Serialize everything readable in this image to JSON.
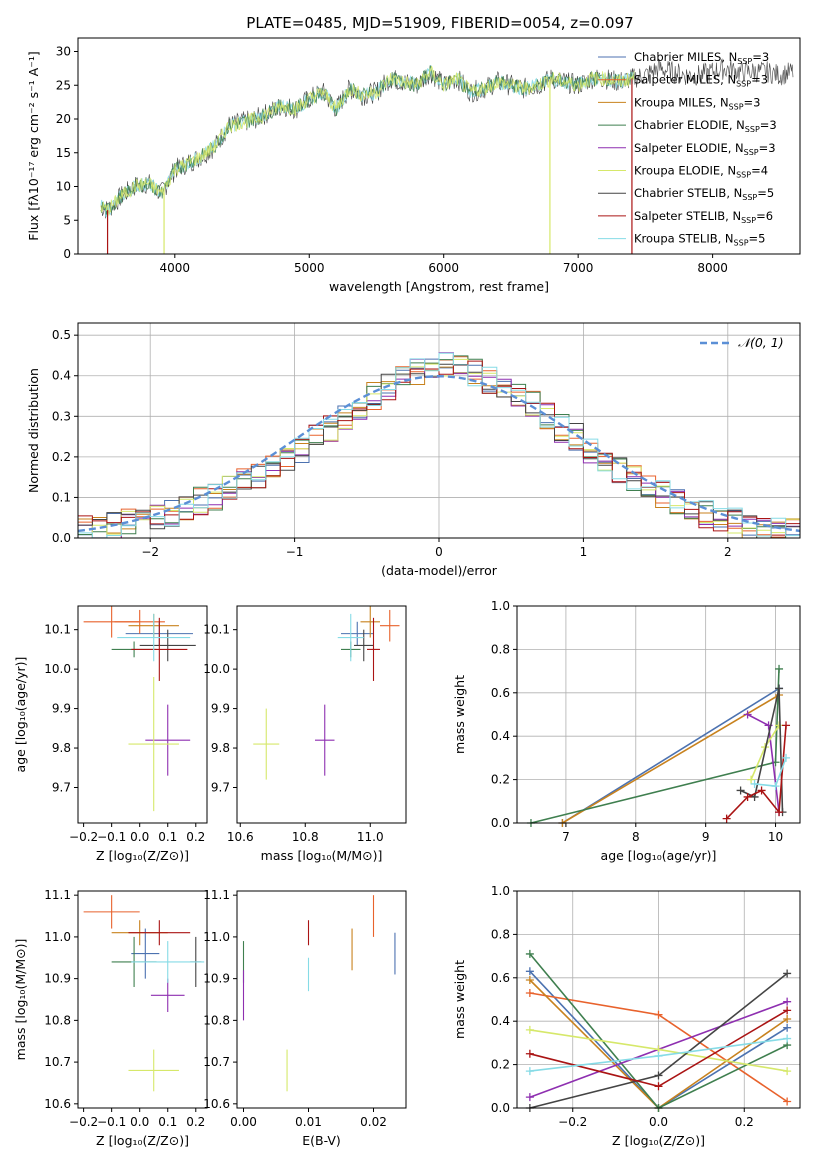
{
  "page_title": "PLATE=0485, MJD=51909, FIBERID=0054, z=0.097",
  "colors": {
    "Chabrier MILES": "#4c72b0",
    "Salpeter MILES": "#e8622c",
    "Kroupa MILES": "#c8821e",
    "Chabrier ELODIE": "#3f7f4f",
    "Salpeter ELODIE": "#8e2fb0",
    "Kroupa ELODIE": "#d6e86a",
    "Chabrier STELIB": "#444444",
    "Salpeter STELIB": "#aa1414",
    "Kroupa STELIB": "#86dbe6",
    "normal": "#5b8fd6"
  },
  "chart_data": [
    {
      "id": "spectrum",
      "type": "line",
      "title": "PLATE=0485, MJD=51909, FIBERID=0054, z=0.097",
      "xlabel": "wavelength [Angstrom, rest frame]",
      "ylabel": "Flux [fλ10⁻¹⁷ erg cm⁻² s⁻¹ A⁻¹]",
      "xlim": [
        3280,
        8650
      ],
      "ylim": [
        0,
        32
      ],
      "xticks": [
        4000,
        5000,
        6000,
        7000,
        8000
      ],
      "yticks": [
        0,
        5,
        10,
        15,
        20,
        25,
        30
      ],
      "legend": [
        "Chabrier MILES, N_SSP=3",
        "Salpeter MILES, N_SSP=3",
        "Kroupa MILES, N_SSP=3",
        "Chabrier ELODIE, N_SSP=3",
        "Salpeter ELODIE, N_SSP=3",
        "Kroupa ELODIE, N_SSP=4",
        "Chabrier STELIB, N_SSP=5",
        "Salpeter STELIB, N_SSP=6",
        "Kroupa STELIB, N_SSP=5"
      ],
      "legend_position": "right",
      "observed_envelope": {
        "x": [
          3450,
          3500,
          3600,
          3700,
          3800,
          3900,
          4000,
          4100,
          4200,
          4300,
          4400,
          4500,
          4600,
          4700,
          4800,
          4900,
          5000,
          5100,
          5200,
          5300,
          5400,
          5500,
          5600,
          5700,
          5800,
          5900,
          6000,
          6100,
          6200,
          6300,
          6400,
          6500,
          6600,
          6700,
          6800,
          6900,
          7000,
          7100,
          7200,
          7300,
          7400,
          7500,
          7600,
          7700,
          7800,
          7900,
          8000,
          8100,
          8200,
          8300,
          8400,
          8500,
          8600
        ],
        "y": [
          7,
          6.5,
          8.5,
          10,
          10.5,
          9,
          12.5,
          13.5,
          14.5,
          16,
          19,
          19.5,
          20,
          21,
          22,
          21.5,
          23,
          24,
          21.5,
          24.5,
          23.5,
          24,
          26,
          25.5,
          25,
          27,
          25,
          26,
          24,
          24.5,
          25.5,
          25,
          24.5,
          25,
          26,
          25.5,
          25,
          26,
          26,
          25.5,
          26,
          26.5,
          27.5,
          27,
          26.5,
          26.5,
          27,
          27.5,
          27,
          27,
          27,
          26.5,
          27
        ]
      },
      "dropouts": [
        {
          "series": "Kroupa ELODIE",
          "x": 3920
        },
        {
          "series": "Salpeter STELIB",
          "x": 3500
        },
        {
          "series": "Kroupa ELODIE",
          "x": 6790
        },
        {
          "series": "Salpeter STELIB",
          "x": 7400
        }
      ]
    },
    {
      "id": "residuals",
      "type": "step",
      "xlabel": "(data-model)/error",
      "ylabel": "Normed distribution",
      "xlim": [
        -2.5,
        2.5
      ],
      "ylim": [
        0,
        0.53
      ],
      "xticks": [
        -2,
        -1,
        0,
        1,
        2
      ],
      "yticks": [
        0.0,
        0.1,
        0.2,
        0.3,
        0.4,
        0.5
      ],
      "grid": true,
      "legend": [
        "𝒩(0, 1)"
      ],
      "legend_position": "top-right",
      "bin_edges_start": -2.5,
      "bin_width": 0.1,
      "base_values": [
        0.02,
        0.02,
        0.03,
        0.04,
        0.04,
        0.05,
        0.06,
        0.07,
        0.09,
        0.1,
        0.12,
        0.14,
        0.15,
        0.17,
        0.2,
        0.22,
        0.25,
        0.27,
        0.3,
        0.32,
        0.35,
        0.37,
        0.39,
        0.41,
        0.42,
        0.43,
        0.42,
        0.41,
        0.39,
        0.37,
        0.35,
        0.33,
        0.3,
        0.27,
        0.25,
        0.22,
        0.2,
        0.17,
        0.15,
        0.13,
        0.11,
        0.09,
        0.08,
        0.06,
        0.05,
        0.04,
        0.03,
        0.03,
        0.02,
        0.02
      ]
    },
    {
      "id": "age_vs_Z",
      "type": "errorbar",
      "xlabel": "Z [log₁₀(Z/Z⊙)]",
      "ylabel": "age  [log₁₀(age/yr)]",
      "xlim": [
        -0.22,
        0.24
      ],
      "ylim": [
        9.61,
        10.16
      ],
      "xticks": [
        -0.2,
        -0.1,
        0.0,
        0.1,
        0.2
      ],
      "yticks": [
        9.7,
        9.8,
        9.9,
        10.0,
        10.1
      ],
      "points": [
        {
          "series": "Chabrier MILES",
          "x": 0.07,
          "y": 10.09,
          "xerr": 0.12,
          "yerr": 0.03
        },
        {
          "series": "Salpeter MILES",
          "x": 0.0,
          "y": 10.12,
          "xerr": 0.09,
          "yerr": 0.03
        },
        {
          "series": "Kroupa MILES",
          "x": 0.05,
          "y": 10.11,
          "xerr": 0.09,
          "yerr": 0.03
        },
        {
          "series": "Chabrier ELODIE",
          "x": -0.02,
          "y": 10.05,
          "xerr": 0.08,
          "yerr": 0.02
        },
        {
          "series": "Salpeter ELODIE",
          "x": 0.1,
          "y": 9.82,
          "xerr": 0.08,
          "yerr": 0.09
        },
        {
          "series": "Kroupa ELODIE",
          "x": 0.05,
          "y": 9.81,
          "xerr": 0.09,
          "yerr": 0.17
        },
        {
          "series": "Chabrier STELIB",
          "x": 0.1,
          "y": 10.06,
          "xerr": 0.1,
          "yerr": 0.04
        },
        {
          "series": "Salpeter STELIB",
          "x": 0.07,
          "y": 10.05,
          "xerr": 0.1,
          "yerr": 0.08
        },
        {
          "series": "Kroupa STELIB",
          "x": 0.05,
          "y": 10.08,
          "xerr": 0.13,
          "yerr": 0.06
        },
        {
          "series": "Salpeter MILES",
          "x": -0.1,
          "y": 10.12,
          "xerr": 0.1,
          "yerr": 0.04
        }
      ]
    },
    {
      "id": "age_vs_mass",
      "type": "errorbar",
      "xlabel": "mass [log₁₀(M/M⊙)]",
      "xlim": [
        10.59,
        11.11
      ],
      "ylim": [
        9.61,
        10.16
      ],
      "xticks": [
        10.6,
        10.8,
        11.0
      ],
      "yticks": [
        9.7,
        9.8,
        9.9,
        10.0,
        10.1
      ],
      "points": [
        {
          "series": "Chabrier MILES",
          "x": 10.96,
          "y": 10.09,
          "xerr": 0.05,
          "yerr": 0.03
        },
        {
          "series": "Salpeter MILES",
          "x": 11.06,
          "y": 10.11,
          "xerr": 0.03,
          "yerr": 0.04
        },
        {
          "series": "Kroupa MILES",
          "x": 11.0,
          "y": 10.12,
          "xerr": 0.03,
          "yerr": 0.04
        },
        {
          "series": "Chabrier ELODIE",
          "x": 10.94,
          "y": 10.05,
          "xerr": 0.03,
          "yerr": 0.02
        },
        {
          "series": "Salpeter ELODIE",
          "x": 10.86,
          "y": 9.82,
          "xerr": 0.03,
          "yerr": 0.09
        },
        {
          "series": "Kroupa ELODIE",
          "x": 10.68,
          "y": 9.81,
          "xerr": 0.04,
          "yerr": 0.09
        },
        {
          "series": "Chabrier STELIB",
          "x": 10.98,
          "y": 10.06,
          "xerr": 0.03,
          "yerr": 0.04
        },
        {
          "series": "Salpeter STELIB",
          "x": 11.01,
          "y": 10.05,
          "xerr": 0.02,
          "yerr": 0.08
        },
        {
          "series": "Kroupa STELIB",
          "x": 10.94,
          "y": 10.08,
          "xerr": 0.04,
          "yerr": 0.06
        }
      ]
    },
    {
      "id": "weight_vs_age",
      "type": "line",
      "xlabel": "age  [log₁₀(age/yr)]",
      "ylabel": "mass weight",
      "xlim": [
        6.3,
        10.35
      ],
      "ylim": [
        0,
        1.0
      ],
      "xticks": [
        7,
        8,
        9,
        10
      ],
      "yticks": [
        0.0,
        0.2,
        0.4,
        0.6,
        0.8,
        1.0
      ],
      "grid": true,
      "series": [
        {
          "name": "Chabrier MILES",
          "x": [
            6.95,
            10.05
          ],
          "y": [
            0.0,
            0.62
          ]
        },
        {
          "name": "Kroupa MILES",
          "x": [
            6.95,
            10.05
          ],
          "y": [
            0.0,
            0.59
          ]
        },
        {
          "name": "Chabrier ELODIE",
          "x": [
            6.5,
            10.0,
            10.05
          ],
          "y": [
            0.0,
            0.28,
            0.71
          ]
        },
        {
          "name": "Salpeter ELODIE",
          "x": [
            9.6,
            9.9,
            10.05
          ],
          "y": [
            0.5,
            0.45,
            0.05
          ]
        },
        {
          "name": "Kroupa ELODIE",
          "x": [
            9.65,
            9.85,
            10.05
          ],
          "y": [
            0.2,
            0.35,
            0.45
          ]
        },
        {
          "name": "Chabrier STELIB",
          "x": [
            9.5,
            9.7,
            10.05,
            10.1
          ],
          "y": [
            0.15,
            0.12,
            0.62,
            0.05
          ]
        },
        {
          "name": "Salpeter STELIB",
          "x": [
            9.3,
            9.6,
            9.8,
            10.05,
            10.15
          ],
          "y": [
            0.02,
            0.12,
            0.15,
            0.05,
            0.45
          ]
        },
        {
          "name": "Kroupa STELIB",
          "x": [
            9.7,
            10.0,
            10.15
          ],
          "y": [
            0.18,
            0.17,
            0.3
          ]
        }
      ]
    },
    {
      "id": "mass_vs_Z",
      "type": "errorbar",
      "xlabel": "Z [log₁₀(Z/Z⊙)]",
      "ylabel": "mass [log₁₀(M/M⊙)]",
      "xlim": [
        -0.22,
        0.24
      ],
      "ylim": [
        10.59,
        11.11
      ],
      "xticks": [
        -0.2,
        -0.1,
        0.0,
        0.1,
        0.2
      ],
      "yticks": [
        10.6,
        10.7,
        10.8,
        10.9,
        11.0,
        11.1
      ],
      "points": [
        {
          "series": "Salpeter MILES",
          "x": -0.1,
          "y": 11.06,
          "xerr": 0.1,
          "yerr": 0.04
        },
        {
          "series": "Kroupa MILES",
          "x": 0.0,
          "y": 11.01,
          "xerr": 0.1,
          "yerr": 0.03
        },
        {
          "series": "Chabrier MILES",
          "x": 0.02,
          "y": 10.96,
          "xerr": 0.05,
          "yerr": 0.06
        },
        {
          "series": "Chabrier ELODIE",
          "x": -0.02,
          "y": 10.94,
          "xerr": 0.08,
          "yerr": 0.06
        },
        {
          "series": "Salpeter ELODIE",
          "x": 0.1,
          "y": 10.86,
          "xerr": 0.06,
          "yerr": 0.04
        },
        {
          "series": "Kroupa ELODIE",
          "x": 0.05,
          "y": 10.68,
          "xerr": 0.09,
          "yerr": 0.05
        },
        {
          "series": "Chabrier STELIB",
          "x": 0.2,
          "y": 10.94,
          "xerr": 0.02,
          "yerr": 0.06
        },
        {
          "series": "Salpeter STELIB",
          "x": 0.07,
          "y": 11.01,
          "xerr": 0.11,
          "yerr": 0.03
        },
        {
          "series": "Kroupa STELIB",
          "x": 0.1,
          "y": 10.94,
          "xerr": 0.13,
          "yerr": 0.05
        }
      ]
    },
    {
      "id": "mass_vs_ebv",
      "type": "errorbar",
      "xlabel": "E(B-V)",
      "xlim": [
        -0.001,
        0.025
      ],
      "ylim": [
        10.59,
        11.11
      ],
      "xticks": [
        0.0,
        0.01,
        0.02
      ],
      "yticks": [
        10.6,
        10.7,
        10.8,
        10.9,
        11.0,
        11.1
      ],
      "points": [
        {
          "series": "Chabrier ELODIE",
          "x": 0.0,
          "y": 10.94,
          "xerr": 0,
          "yerr": 0.05
        },
        {
          "series": "Salpeter ELODIE",
          "x": 0.0,
          "y": 10.86,
          "xerr": 0,
          "yerr": 0.06
        },
        {
          "series": "Kroupa ELODIE",
          "x": 0.0067,
          "y": 10.68,
          "xerr": 0,
          "yerr": 0.05
        },
        {
          "series": "Salpeter STELIB",
          "x": 0.01,
          "y": 11.01,
          "xerr": 0,
          "yerr": 0.03
        },
        {
          "series": "Kroupa STELIB",
          "x": 0.01,
          "y": 10.91,
          "xerr": 0,
          "yerr": 0.04
        },
        {
          "series": "Kroupa MILES",
          "x": 0.0167,
          "y": 10.97,
          "xerr": 0,
          "yerr": 0.05
        },
        {
          "series": "Salpeter MILES",
          "x": 0.02,
          "y": 11.05,
          "xerr": 0,
          "yerr": 0.05
        },
        {
          "series": "Chabrier MILES",
          "x": 0.0233,
          "y": 10.96,
          "xerr": 0,
          "yerr": 0.05
        }
      ]
    },
    {
      "id": "weight_vs_Z",
      "type": "line",
      "xlabel": "Z [log₁₀(Z/Z⊙)]",
      "ylabel": "mass weight",
      "xlim": [
        -0.33,
        0.33
      ],
      "ylim": [
        0,
        1.0
      ],
      "xticks": [
        -0.2,
        0.0,
        0.2
      ],
      "yticks": [
        0.0,
        0.2,
        0.4,
        0.6,
        0.8,
        1.0
      ],
      "grid": true,
      "series": [
        {
          "name": "Chabrier MILES",
          "x": [
            -0.3,
            0.0,
            0.3
          ],
          "y": [
            0.63,
            0.0,
            0.37
          ]
        },
        {
          "name": "Salpeter MILES",
          "x": [
            -0.3,
            0.0,
            0.3
          ],
          "y": [
            0.53,
            0.43,
            0.03
          ]
        },
        {
          "name": "Kroupa MILES",
          "x": [
            -0.3,
            0.0,
            0.3
          ],
          "y": [
            0.59,
            0.0,
            0.41
          ]
        },
        {
          "name": "Chabrier ELODIE",
          "x": [
            -0.3,
            0.0,
            0.3
          ],
          "y": [
            0.71,
            0.0,
            0.29
          ]
        },
        {
          "name": "Salpeter ELODIE",
          "x": [
            -0.3,
            0.0,
            0.3
          ],
          "y": [
            0.05,
            0.27,
            0.49
          ]
        },
        {
          "name": "Kroupa ELODIE",
          "x": [
            -0.3,
            0.0,
            0.3
          ],
          "y": [
            0.36,
            0.27,
            0.17
          ]
        },
        {
          "name": "Chabrier STELIB",
          "x": [
            -0.3,
            0.0,
            0.3
          ],
          "y": [
            0.0,
            0.15,
            0.62
          ]
        },
        {
          "name": "Salpeter STELIB",
          "x": [
            -0.3,
            0.0,
            0.3
          ],
          "y": [
            0.25,
            0.1,
            0.45
          ]
        },
        {
          "name": "Kroupa STELIB",
          "x": [
            -0.3,
            0.0,
            0.3
          ],
          "y": [
            0.17,
            0.24,
            0.32
          ]
        }
      ]
    }
  ]
}
